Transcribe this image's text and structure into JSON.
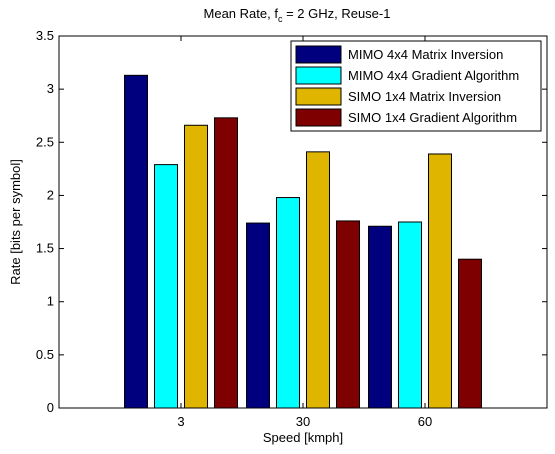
{
  "chart_data": {
    "type": "bar",
    "title_main": "Mean Rate, f",
    "title_sub": "c",
    "title_rest": " = 2 GHz, Reuse-1",
    "xlabel": "Speed [kmph]",
    "ylabel": "Rate [bits per symbol]",
    "categories": [
      "3",
      "30",
      "60"
    ],
    "ylim": [
      0,
      3.5
    ],
    "yticks": [
      "0",
      "0.5",
      "1",
      "1.5",
      "2",
      "2.5",
      "3",
      "3.5"
    ],
    "grid": false,
    "legend_position": "top-right",
    "series": [
      {
        "name": "MIMO 4x4 Matrix Inversion",
        "color": "#00007f",
        "values": [
          3.13,
          1.74,
          1.71
        ]
      },
      {
        "name": "MIMO 4x4 Gradient Algorithm",
        "color": "#00ffff",
        "values": [
          2.29,
          1.98,
          1.75
        ]
      },
      {
        "name": "SIMO 1x4 Matrix Inversion",
        "color": "#dfb500",
        "values": [
          2.66,
          2.41,
          2.39
        ]
      },
      {
        "name": "SIMO 1x4 Gradient Algorithm",
        "color": "#7f0000",
        "values": [
          2.73,
          1.76,
          1.4
        ]
      }
    ]
  }
}
